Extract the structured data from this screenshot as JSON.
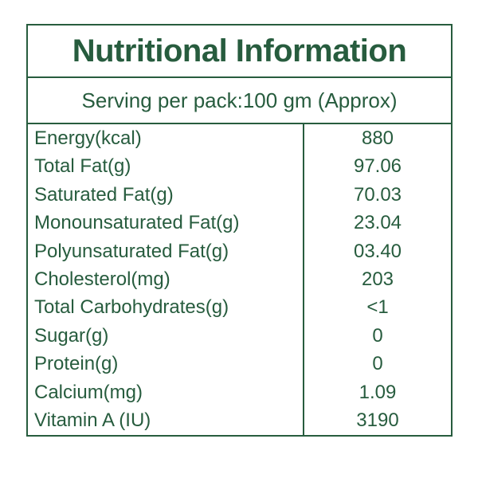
{
  "title": "Nutritional Information",
  "serving": "Serving per pack:100 gm (Approx)",
  "colors": {
    "text_green": "#275c3e",
    "border_green": "#275c3e",
    "background": "#ffffff"
  },
  "table": {
    "rows": [
      {
        "label": "Energy(kcal)",
        "value": "880"
      },
      {
        "label": "Total Fat(g)",
        "value": "97.06"
      },
      {
        "label": "Saturated Fat(g)",
        "value": "70.03"
      },
      {
        "label": "Monounsaturated Fat(g)",
        "value": "23.04"
      },
      {
        "label": "Polyunsaturated Fat(g)",
        "value": "03.40"
      },
      {
        "label": "Cholesterol(mg)",
        "value": "203"
      },
      {
        "label": "Total Carbohydrates(g)",
        "value": "<1"
      },
      {
        "label": "Sugar(g)",
        "value": "0"
      },
      {
        "label": "Protein(g)",
        "value": "0"
      },
      {
        "label": "Calcium(mg)",
        "value": "1.09"
      },
      {
        "label": "Vitamin A (IU)",
        "value": "3190"
      }
    ]
  }
}
